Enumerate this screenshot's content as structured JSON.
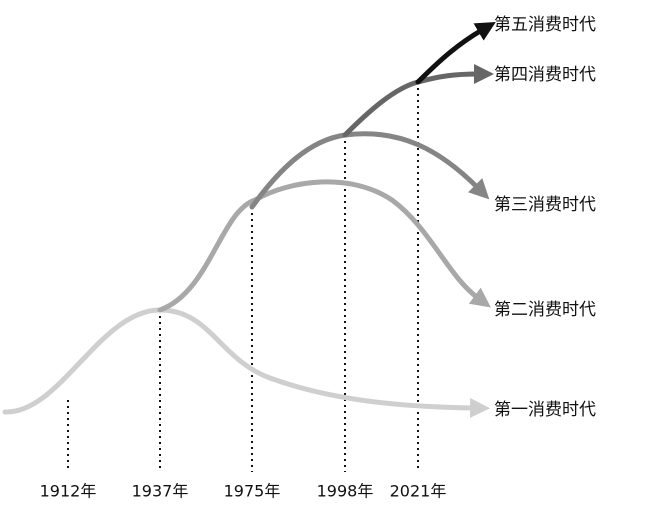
{
  "years": [
    "1912年",
    "1937年",
    "1975年",
    "1998年",
    "2021年"
  ],
  "eras": [
    "第五消费时代",
    "第四消费时代",
    "第三消费时代",
    "第二消费时代",
    "第一消费时代"
  ]
}
